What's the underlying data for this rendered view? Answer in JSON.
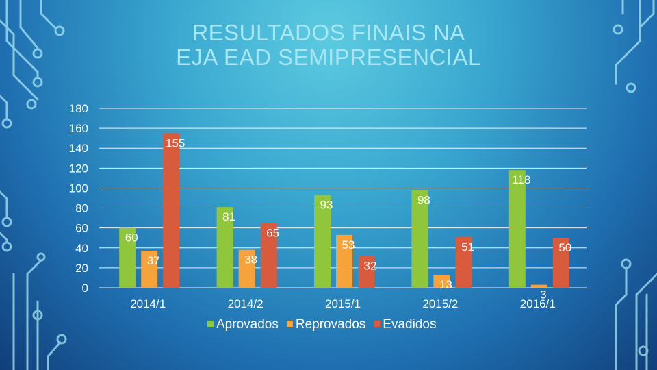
{
  "title_line1": "RESULTADOS FINAIS NA",
  "title_line2": "EJA EAD SEMIPRESENCIAL",
  "colors": {
    "Aprovados": "#8fc63c",
    "Reprovados": "#f5a33a",
    "Evadidos": "#d95b3d",
    "text": "#ffffff",
    "grid": "#ffffff",
    "decor": "#a7e6f4"
  },
  "chart_data": {
    "type": "bar",
    "categories": [
      "2014/1",
      "2014/2",
      "2015/1",
      "2015/2",
      "2016/1"
    ],
    "series": [
      {
        "name": "Aprovados",
        "values": [
          60,
          81,
          93,
          98,
          118
        ]
      },
      {
        "name": "Reprovados",
        "values": [
          37,
          38,
          53,
          13,
          3
        ]
      },
      {
        "name": "Evadidos",
        "values": [
          155,
          65,
          32,
          51,
          50
        ]
      }
    ],
    "ylim": [
      0,
      180
    ],
    "yticks": [
      0,
      20,
      40,
      60,
      80,
      100,
      120,
      140,
      160,
      180
    ],
    "grid": true,
    "legend": "bottom",
    "title": "RESULTADOS FINAIS NA EJA EAD SEMIPRESENCIAL",
    "xlabel": "",
    "ylabel": ""
  }
}
